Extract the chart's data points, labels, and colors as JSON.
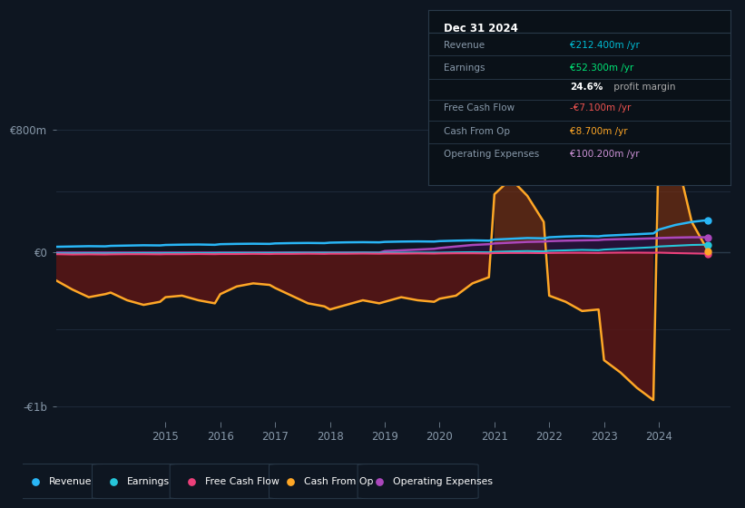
{
  "bg_color": "#0e1621",
  "plot_bg_color": "#0e1621",
  "ylim": [
    -1100,
    950
  ],
  "yticks_pos": [
    -1000,
    0,
    800
  ],
  "ytick_labels": [
    "-€1b",
    "€0",
    "€800m"
  ],
  "xtick_years": [
    2015,
    2016,
    2017,
    2018,
    2019,
    2020,
    2021,
    2022,
    2023,
    2024
  ],
  "xlim": [
    2013.0,
    2025.3
  ],
  "legend_items": [
    {
      "label": "Revenue",
      "color": "#29b6f6"
    },
    {
      "label": "Earnings",
      "color": "#26c6da"
    },
    {
      "label": "Free Cash Flow",
      "color": "#ec407a"
    },
    {
      "label": "Cash From Op",
      "color": "#ffa726"
    },
    {
      "label": "Operating Expenses",
      "color": "#ab47bc"
    }
  ],
  "info_box": {
    "date": "Dec 31 2024",
    "rows": [
      {
        "label": "Revenue",
        "value": "€212.400m /yr",
        "value_color": "#00bcd4"
      },
      {
        "label": "Earnings",
        "value": "€52.300m /yr",
        "value_color": "#00e676"
      },
      {
        "label": "",
        "value1": "24.6%",
        "value2": " profit margin",
        "v1color": "#ffffff",
        "v2color": "#aaaaaa"
      },
      {
        "label": "Free Cash Flow",
        "value": "-€7.100m /yr",
        "value_color": "#ef5350"
      },
      {
        "label": "Cash From Op",
        "value": "€8.700m /yr",
        "value_color": "#ffa726"
      },
      {
        "label": "Operating Expenses",
        "value": "€100.200m /yr",
        "value_color": "#ce93d8"
      }
    ]
  },
  "series": {
    "x": [
      2013.0,
      2013.3,
      2013.6,
      2013.9,
      2014.0,
      2014.3,
      2014.6,
      2014.9,
      2015.0,
      2015.3,
      2015.6,
      2015.9,
      2016.0,
      2016.3,
      2016.6,
      2016.9,
      2017.0,
      2017.3,
      2017.6,
      2017.9,
      2018.0,
      2018.3,
      2018.6,
      2018.9,
      2019.0,
      2019.3,
      2019.6,
      2019.9,
      2020.0,
      2020.3,
      2020.6,
      2020.9,
      2021.0,
      2021.3,
      2021.6,
      2021.9,
      2022.0,
      2022.3,
      2022.6,
      2022.9,
      2023.0,
      2023.3,
      2023.6,
      2023.9,
      2024.0,
      2024.3,
      2024.6,
      2024.9
    ],
    "revenue": [
      38,
      40,
      42,
      41,
      44,
      46,
      48,
      47,
      50,
      52,
      53,
      51,
      55,
      57,
      58,
      57,
      60,
      62,
      63,
      62,
      65,
      67,
      68,
      67,
      70,
      72,
      73,
      72,
      75,
      78,
      80,
      78,
      85,
      90,
      95,
      93,
      100,
      105,
      108,
      106,
      110,
      115,
      120,
      125,
      150,
      180,
      200,
      212
    ],
    "earnings": [
      -5,
      -5,
      -4,
      -5,
      -4,
      -4,
      -3,
      -4,
      -3,
      -3,
      -3,
      -3,
      -2,
      -2,
      -2,
      -2,
      -2,
      -1,
      -1,
      -1,
      -1,
      -1,
      0,
      -1,
      0,
      0,
      0,
      0,
      0,
      2,
      3,
      2,
      5,
      8,
      10,
      8,
      12,
      15,
      18,
      16,
      20,
      25,
      30,
      35,
      40,
      45,
      50,
      52
    ],
    "free_cash_flow": [
      -10,
      -12,
      -11,
      -12,
      -11,
      -10,
      -10,
      -11,
      -10,
      -10,
      -9,
      -10,
      -9,
      -9,
      -8,
      -9,
      -8,
      -8,
      -7,
      -8,
      -7,
      -7,
      -6,
      -7,
      -6,
      -6,
      -5,
      -6,
      -5,
      -4,
      -4,
      -5,
      -3,
      -2,
      -2,
      -3,
      -2,
      -1,
      -1,
      -2,
      -1,
      0,
      0,
      -1,
      0,
      -3,
      -5,
      -7
    ],
    "cash_from_op": [
      -180,
      -240,
      -290,
      -270,
      -260,
      -310,
      -340,
      -320,
      -290,
      -280,
      -310,
      -330,
      -270,
      -220,
      -200,
      -210,
      -230,
      -280,
      -330,
      -350,
      -370,
      -340,
      -310,
      -330,
      -320,
      -290,
      -310,
      -320,
      -300,
      -280,
      -200,
      -160,
      380,
      480,
      370,
      200,
      -280,
      -320,
      -380,
      -370,
      -700,
      -780,
      -880,
      -960,
      760,
      650,
      200,
      9
    ],
    "operating_expenses": [
      0,
      0,
      0,
      0,
      0,
      0,
      0,
      0,
      0,
      0,
      0,
      0,
      0,
      0,
      0,
      0,
      0,
      0,
      0,
      0,
      0,
      0,
      0,
      0,
      10,
      15,
      20,
      25,
      30,
      40,
      50,
      55,
      60,
      65,
      70,
      72,
      75,
      78,
      80,
      82,
      85,
      88,
      90,
      93,
      95,
      98,
      100,
      100
    ]
  }
}
